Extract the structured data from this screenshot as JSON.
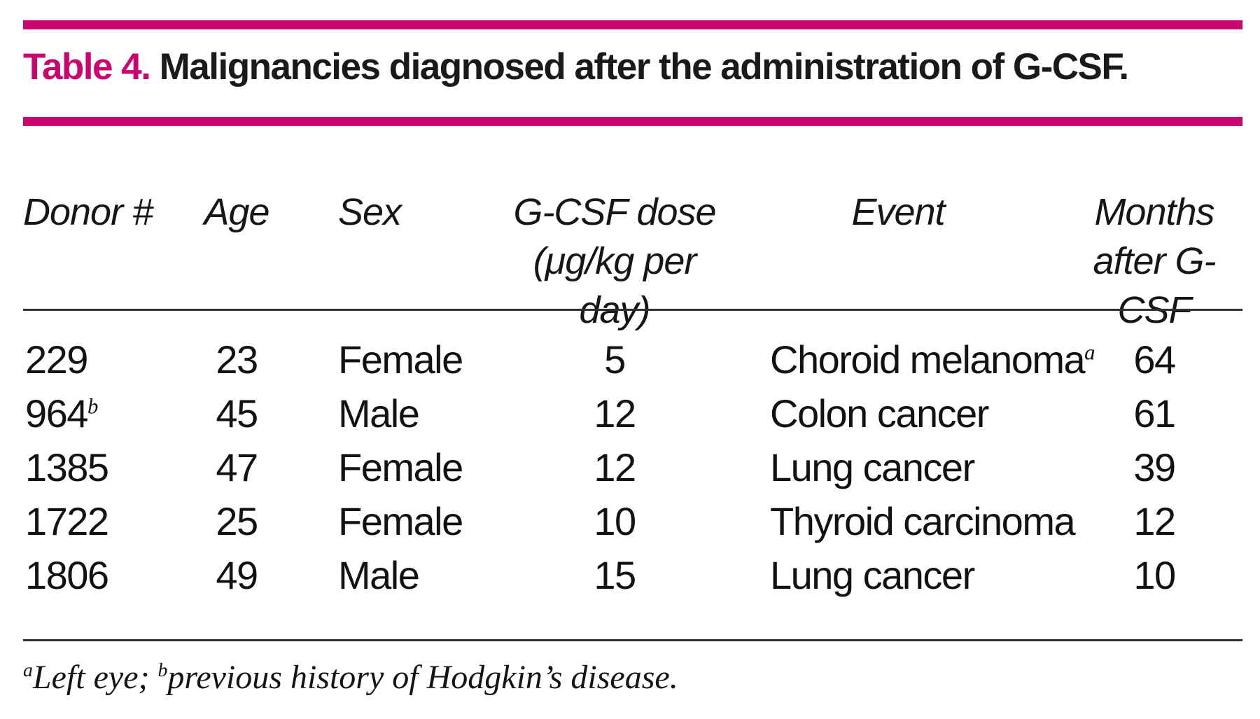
{
  "table": {
    "label": "Table 4.",
    "title": " Malignancies diagnosed after the administration of G-CSF.",
    "columns": {
      "donor": "Donor #",
      "age": "Age",
      "sex": "Sex",
      "dose_line1": "G-CSF dose",
      "dose_line2": "(μg/kg per day)",
      "event": "Event",
      "months_line1": "Months",
      "months_line2": "after G-CSF"
    },
    "rows": [
      {
        "donor": "229",
        "donor_sup": "",
        "age": "23",
        "sex": "Female",
        "dose": "5",
        "event": "Choroid melanoma",
        "event_sup": "a",
        "months": "64"
      },
      {
        "donor": "964",
        "donor_sup": "b",
        "age": "45",
        "sex": "Male",
        "dose": "12",
        "event": "Colon cancer",
        "event_sup": "",
        "months": "61"
      },
      {
        "donor": "1385",
        "donor_sup": "",
        "age": "47",
        "sex": "Female",
        "dose": "12",
        "event": "Lung cancer",
        "event_sup": "",
        "months": "39"
      },
      {
        "donor": "1722",
        "donor_sup": "",
        "age": "25",
        "sex": "Female",
        "dose": "10",
        "event": "Thyroid carcinoma",
        "event_sup": "",
        "months": "12"
      },
      {
        "donor": "1806",
        "donor_sup": "",
        "age": "49",
        "sex": "Male",
        "dose": "15",
        "event": "Lung cancer",
        "event_sup": "",
        "months": "10"
      }
    ],
    "footnote": {
      "sup_a": "a",
      "text_a": "Left eye; ",
      "sup_b": "b",
      "text_b": "previous history of Hodgkin’s disease."
    },
    "colors": {
      "accent": "#cb0570",
      "rule": "#2f2f2f",
      "text": "#111111"
    }
  }
}
